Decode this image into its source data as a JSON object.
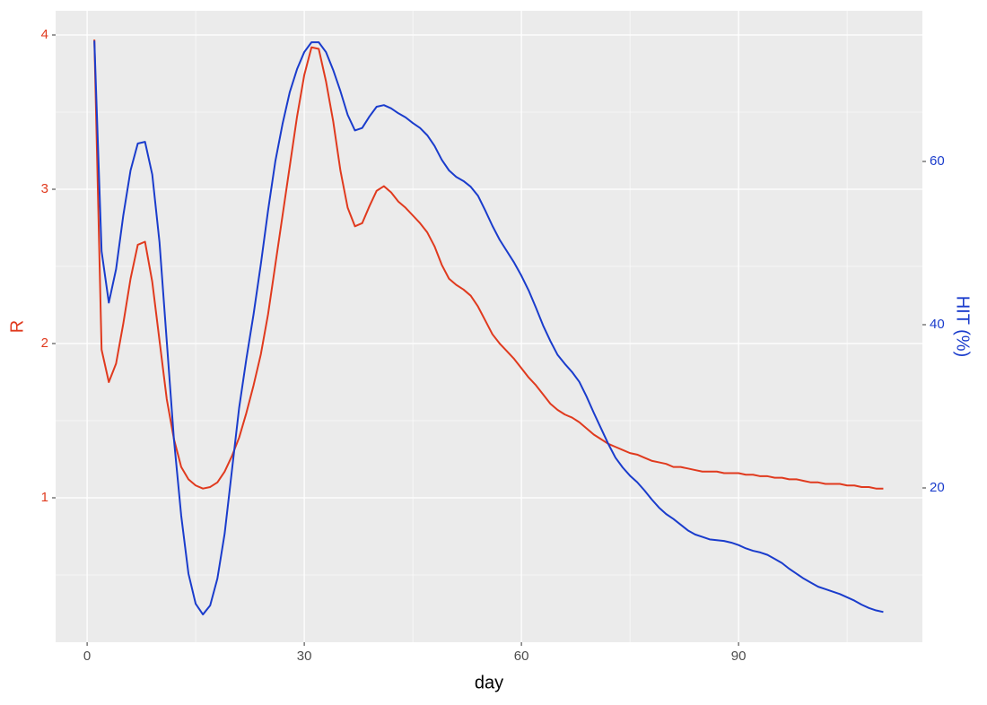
{
  "chart_data": {
    "type": "line",
    "x_label": "day",
    "y_label": "R",
    "y2_label": "HIT (%)",
    "x": [
      1,
      2,
      3,
      4,
      5,
      6,
      7,
      8,
      9,
      10,
      11,
      12,
      13,
      14,
      15,
      16,
      17,
      18,
      19,
      20,
      21,
      22,
      23,
      24,
      25,
      26,
      27,
      28,
      29,
      30,
      31,
      32,
      33,
      34,
      35,
      36,
      37,
      38,
      39,
      40,
      41,
      42,
      43,
      44,
      45,
      46,
      47,
      48,
      49,
      50,
      51,
      52,
      53,
      54,
      55,
      56,
      57,
      58,
      59,
      60,
      61,
      62,
      63,
      64,
      65,
      66,
      67,
      68,
      69,
      70,
      71,
      72,
      73,
      74,
      75,
      76,
      77,
      78,
      79,
      80,
      81,
      82,
      83,
      84,
      85,
      86,
      87,
      88,
      89,
      90,
      91,
      92,
      93,
      94,
      95,
      96,
      97,
      98,
      99,
      100,
      101,
      102,
      103,
      104,
      105,
      106,
      107,
      108,
      109,
      110
    ],
    "series": [
      {
        "name": "R",
        "color": "#e03a1e",
        "axis": "y",
        "values": [
          3.97,
          1.96,
          1.75,
          1.87,
          2.13,
          2.42,
          2.64,
          2.66,
          2.4,
          2.02,
          1.64,
          1.38,
          1.2,
          1.12,
          1.08,
          1.06,
          1.07,
          1.1,
          1.17,
          1.27,
          1.39,
          1.55,
          1.73,
          1.93,
          2.19,
          2.51,
          2.83,
          3.15,
          3.47,
          3.74,
          3.92,
          3.91,
          3.7,
          3.44,
          3.12,
          2.88,
          2.76,
          2.78,
          2.89,
          2.99,
          3.02,
          2.98,
          2.92,
          2.88,
          2.83,
          2.78,
          2.72,
          2.63,
          2.51,
          2.42,
          2.38,
          2.35,
          2.31,
          2.24,
          2.15,
          2.06,
          2.0,
          1.95,
          1.9,
          1.84,
          1.78,
          1.73,
          1.67,
          1.61,
          1.57,
          1.54,
          1.52,
          1.49,
          1.45,
          1.41,
          1.38,
          1.35,
          1.33,
          1.31,
          1.29,
          1.28,
          1.26,
          1.24,
          1.23,
          1.22,
          1.2,
          1.2,
          1.19,
          1.18,
          1.17,
          1.17,
          1.17,
          1.16,
          1.16,
          1.16,
          1.15,
          1.15,
          1.14,
          1.14,
          1.13,
          1.13,
          1.12,
          1.12,
          1.11,
          1.1,
          1.1,
          1.09,
          1.09,
          1.09,
          1.08,
          1.08,
          1.07,
          1.07,
          1.06,
          1.06
        ]
      },
      {
        "name": "HIT (%)",
        "color": "#1a3ccc",
        "axis": "y2",
        "values": [
          74.8,
          49.0,
          42.7,
          46.8,
          53.4,
          58.9,
          62.2,
          62.4,
          58.4,
          50.1,
          38.0,
          25.9,
          16.6,
          9.5,
          5.8,
          4.5,
          5.6,
          8.9,
          14.4,
          22.1,
          29.8,
          35.8,
          41.3,
          47.4,
          54.0,
          60.0,
          64.6,
          68.5,
          71.3,
          73.4,
          74.6,
          74.6,
          73.4,
          71.2,
          68.6,
          65.7,
          63.8,
          64.1,
          65.5,
          66.7,
          66.9,
          66.5,
          65.9,
          65.4,
          64.7,
          64.1,
          63.2,
          61.9,
          60.2,
          58.9,
          58.1,
          57.6,
          56.9,
          55.8,
          54.0,
          52.1,
          50.4,
          49.0,
          47.6,
          46.0,
          44.2,
          42.1,
          39.9,
          38.0,
          36.3,
          35.2,
          34.2,
          33.0,
          31.2,
          29.2,
          27.3,
          25.4,
          23.7,
          22.5,
          21.5,
          20.7,
          19.7,
          18.6,
          17.6,
          16.8,
          16.2,
          15.5,
          14.8,
          14.3,
          14.0,
          13.7,
          13.6,
          13.5,
          13.3,
          13.0,
          12.6,
          12.3,
          12.1,
          11.8,
          11.3,
          10.8,
          10.1,
          9.5,
          8.9,
          8.4,
          7.9,
          7.6,
          7.3,
          7.0,
          6.6,
          6.2,
          5.7,
          5.3,
          5.0,
          4.8
        ]
      }
    ],
    "xlim": [
      -4.35,
      115.4
    ],
    "xticks": [
      0,
      30,
      60,
      90
    ],
    "x_minor_grid": [
      15,
      45,
      75,
      105
    ],
    "ylim": [
      0.064,
      4.157
    ],
    "yticks": [
      1,
      2,
      3,
      4
    ],
    "y_minor_grid": [
      0.5,
      1.5,
      2.5,
      3.5
    ],
    "y2lim": [
      1.1,
      78.46
    ],
    "y2ticks": [
      20,
      40,
      60
    ],
    "grid": true
  }
}
